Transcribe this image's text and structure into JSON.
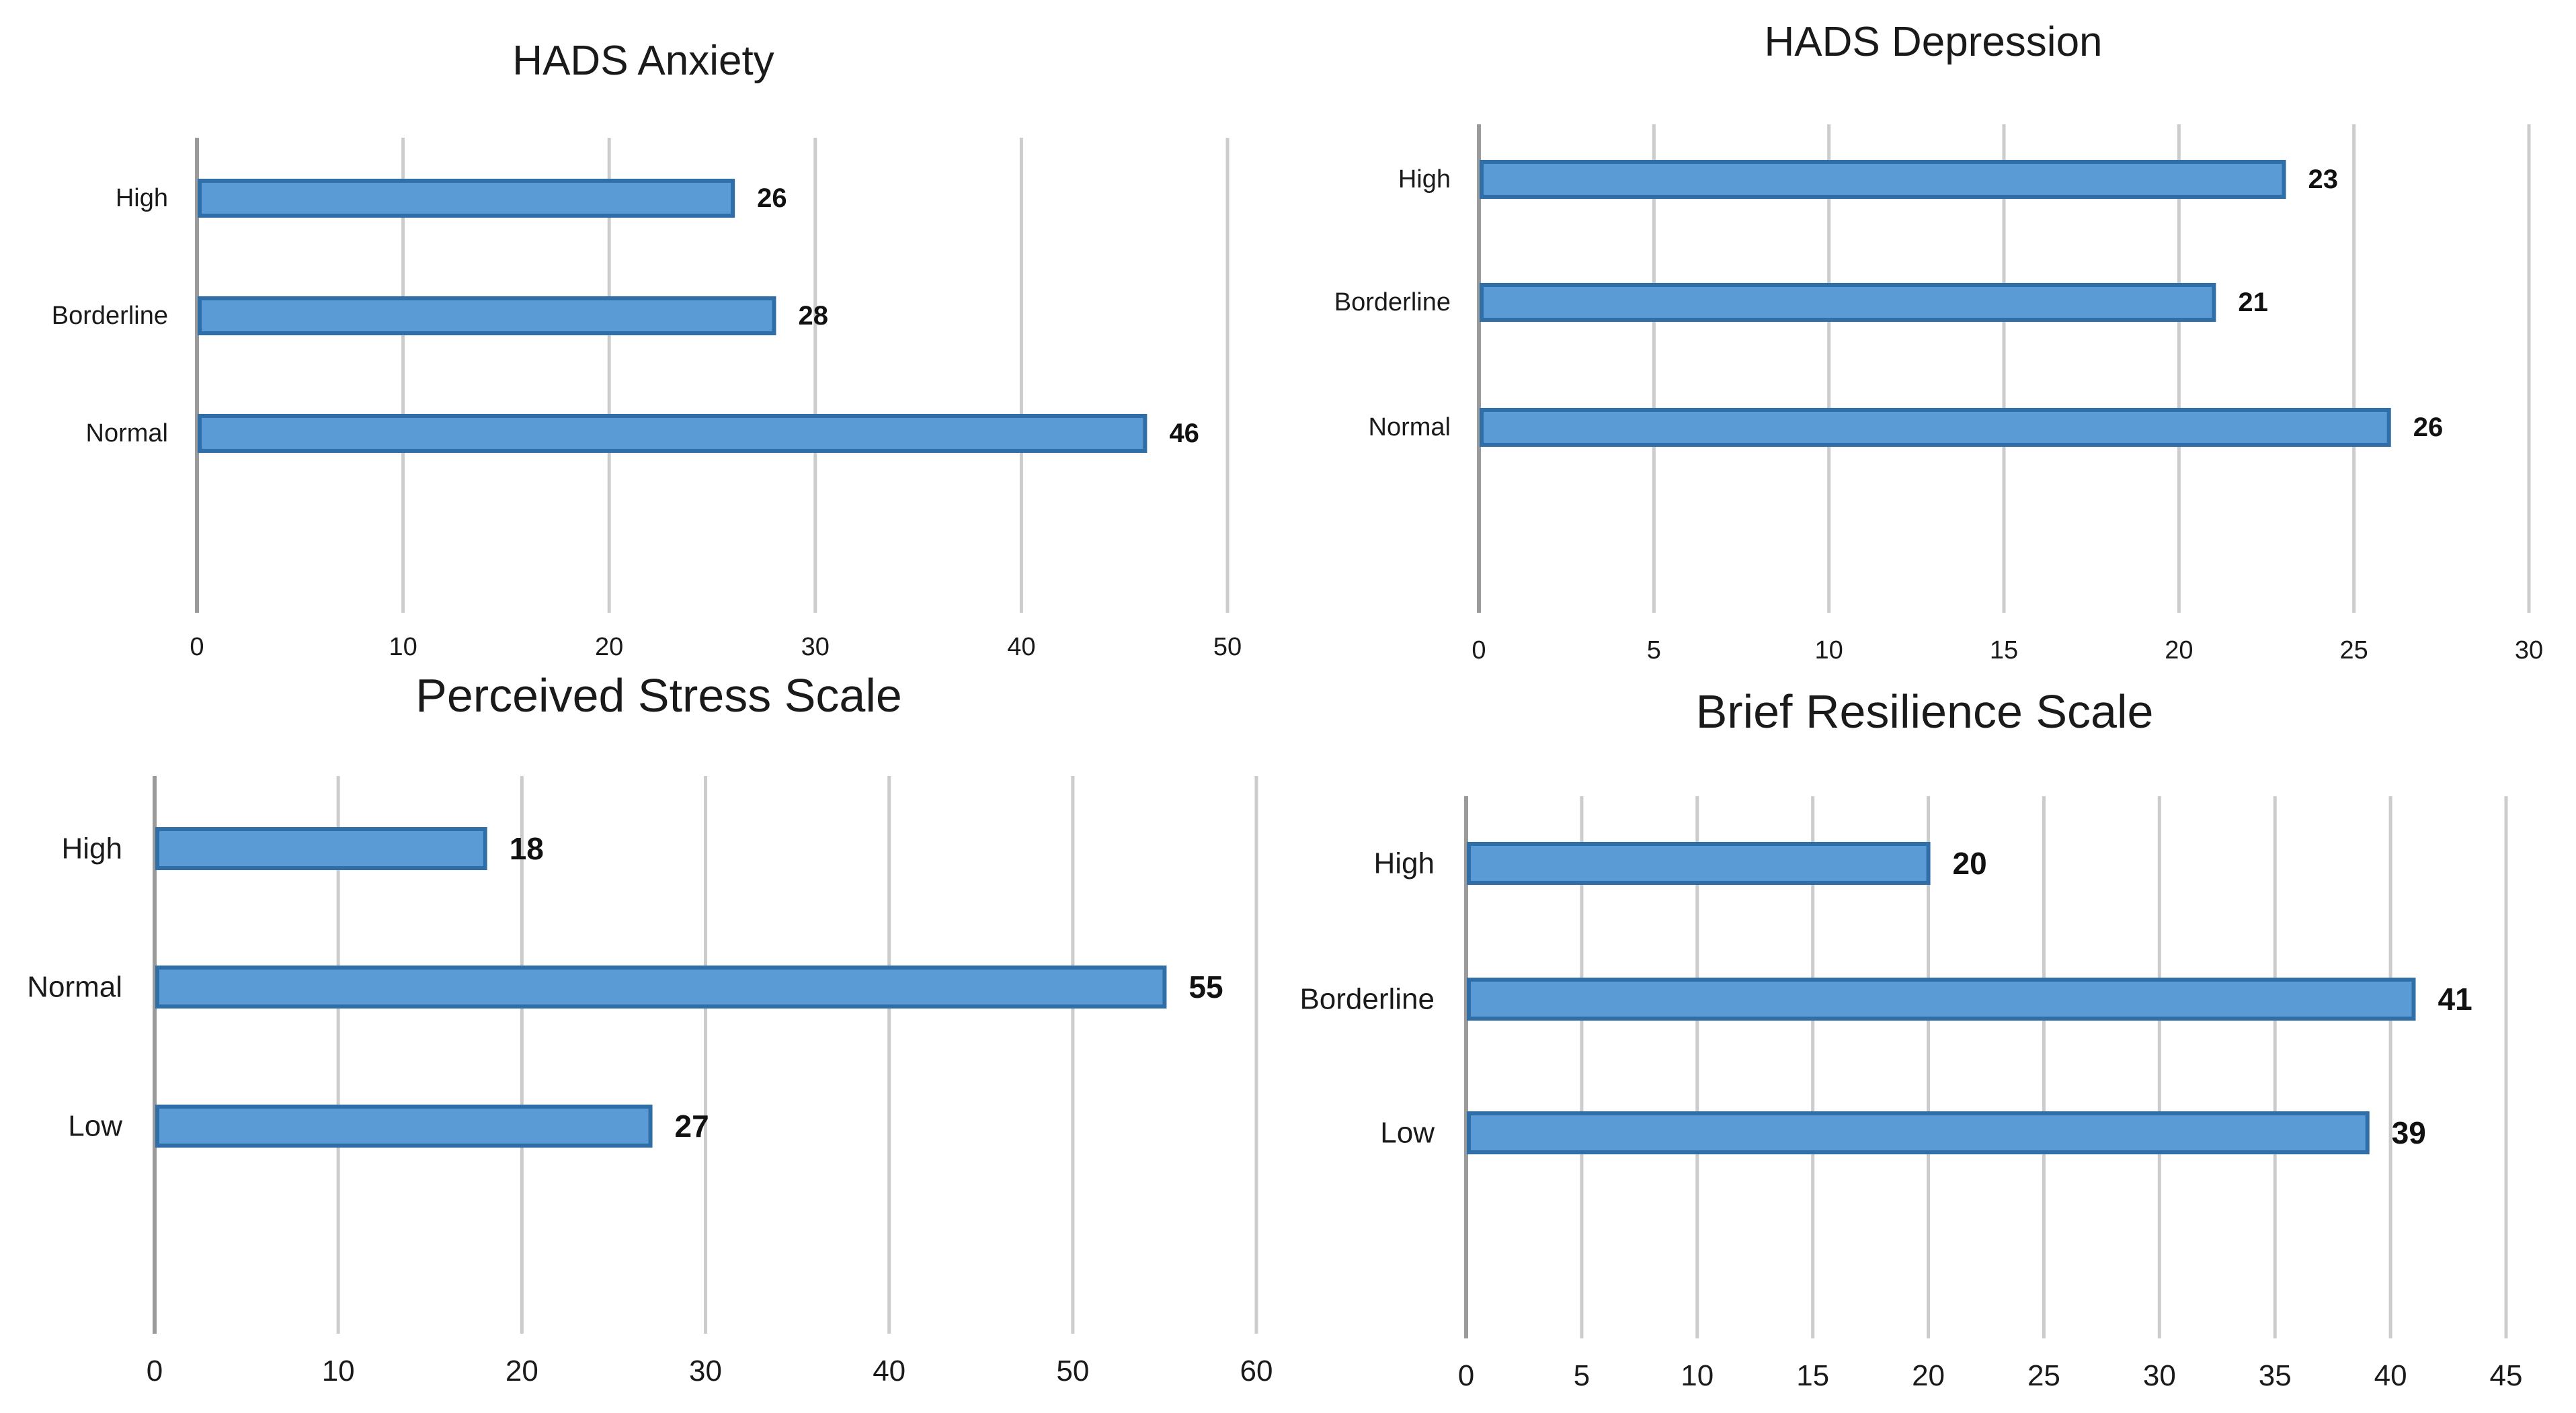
{
  "colors": {
    "bar_fill": "#5b9bd5",
    "bar_stroke": "#2f6ea6",
    "gridline": "#cccccc"
  },
  "chart_data": [
    {
      "type": "bar",
      "orientation": "horizontal",
      "title": "HADS Anxiety",
      "categories": [
        "High",
        "Borderline",
        "Normal"
      ],
      "values": [
        26,
        28,
        46
      ],
      "xlim": [
        0,
        50
      ],
      "xticks": [
        "0",
        "10",
        "20",
        "30",
        "40",
        "50"
      ],
      "grid": true,
      "data_labels": true
    },
    {
      "type": "bar",
      "orientation": "horizontal",
      "title": "HADS Depression",
      "categories": [
        "High",
        "Borderline",
        "Normal"
      ],
      "values": [
        23,
        21,
        26
      ],
      "xlim": [
        0,
        30
      ],
      "xticks": [
        "0",
        "5",
        "10",
        "15",
        "20",
        "25",
        "30"
      ],
      "grid": true,
      "data_labels": true
    },
    {
      "type": "bar",
      "orientation": "horizontal",
      "title": "Perceived Stress Scale",
      "categories": [
        "High",
        "Normal",
        "Low"
      ],
      "values": [
        18,
        55,
        27
      ],
      "xlim": [
        0,
        60
      ],
      "xticks": [
        "0",
        "10",
        "20",
        "30",
        "40",
        "50",
        "60"
      ],
      "grid": true,
      "data_labels": true
    },
    {
      "type": "bar",
      "orientation": "horizontal",
      "title": "Brief Resilience Scale",
      "categories": [
        "High",
        "Borderline",
        "Low"
      ],
      "values": [
        20,
        41,
        39
      ],
      "xlim": [
        0,
        45
      ],
      "xticks": [
        "0",
        "5",
        "10",
        "15",
        "20",
        "25",
        "30",
        "35",
        "40",
        "45"
      ],
      "grid": true,
      "data_labels": true
    }
  ]
}
